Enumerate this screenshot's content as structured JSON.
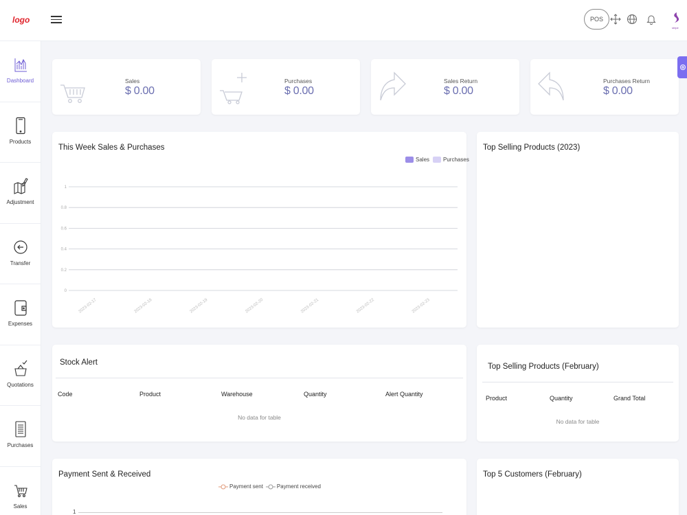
{
  "brand": {
    "logo_text": "logo",
    "accent_color": "#7b6ef0"
  },
  "header": {
    "pos_label": "POS"
  },
  "sidebar": {
    "items": [
      {
        "label": "Dashboard",
        "icon": "bar-chart-icon"
      },
      {
        "label": "Products",
        "icon": "phone-icon"
      },
      {
        "label": "Adjustment",
        "icon": "map-edit-icon"
      },
      {
        "label": "Transfer",
        "icon": "transfer-icon"
      },
      {
        "label": "Expenses",
        "icon": "wallet-icon"
      },
      {
        "label": "Quotations",
        "icon": "basket-check-icon"
      },
      {
        "label": "Purchases",
        "icon": "receipt-icon"
      },
      {
        "label": "Sales",
        "icon": "cart-icon"
      }
    ]
  },
  "stats": [
    {
      "label": "Sales",
      "value": "$ 0.00",
      "icon": "cart-icon"
    },
    {
      "label": "Purchases",
      "value": "$ 0.00",
      "icon": "cart-plus-icon"
    },
    {
      "label": "Sales Return",
      "value": "$ 0.00",
      "icon": "forward-arrow-icon"
    },
    {
      "label": "Purchases Return",
      "value": "$ 0.00",
      "icon": "back-arrow-icon"
    }
  ],
  "weekly_chart": {
    "title": "This Week Sales & Purchases",
    "legend": [
      {
        "name": "Sales",
        "color": "#9c8ee8"
      },
      {
        "name": "Purchases",
        "color": "#d7d1f5"
      }
    ]
  },
  "top_selling_year": {
    "title": "Top Selling Products (2023)"
  },
  "stock_alert": {
    "title": "Stock Alert",
    "columns": [
      "Code",
      "Product",
      "Warehouse",
      "Quantity",
      "Alert Quantity"
    ],
    "empty_text": "No data for table"
  },
  "top_selling_month": {
    "title": "Top Selling Products (February)",
    "columns": [
      "Product",
      "Quantity",
      "Grand Total"
    ],
    "empty_text": "No data for table"
  },
  "payment_chart": {
    "title": "Payment Sent & Received",
    "legend": [
      "Payment sent",
      "Payment received"
    ],
    "first_tick": "1"
  },
  "top_customers": {
    "title": "Top 5 Customers (February)"
  },
  "chart_data": {
    "type": "bar",
    "categories": [
      "2023-02-17",
      "2023-02-18",
      "2023-02-19",
      "2023-02-20",
      "2023-02-21",
      "2023-02-22",
      "2023-02-23"
    ],
    "series": [
      {
        "name": "Sales",
        "values": [
          0,
          0,
          0,
          0,
          0,
          0,
          0
        ]
      },
      {
        "name": "Purchases",
        "values": [
          0,
          0,
          0,
          0,
          0,
          0,
          0
        ]
      }
    ],
    "yticks": [
      "1",
      "0.8",
      "0.6",
      "0.4",
      "0.2",
      "0"
    ],
    "ylim": [
      0,
      1
    ],
    "grid": true,
    "legend_position": "top-right"
  }
}
